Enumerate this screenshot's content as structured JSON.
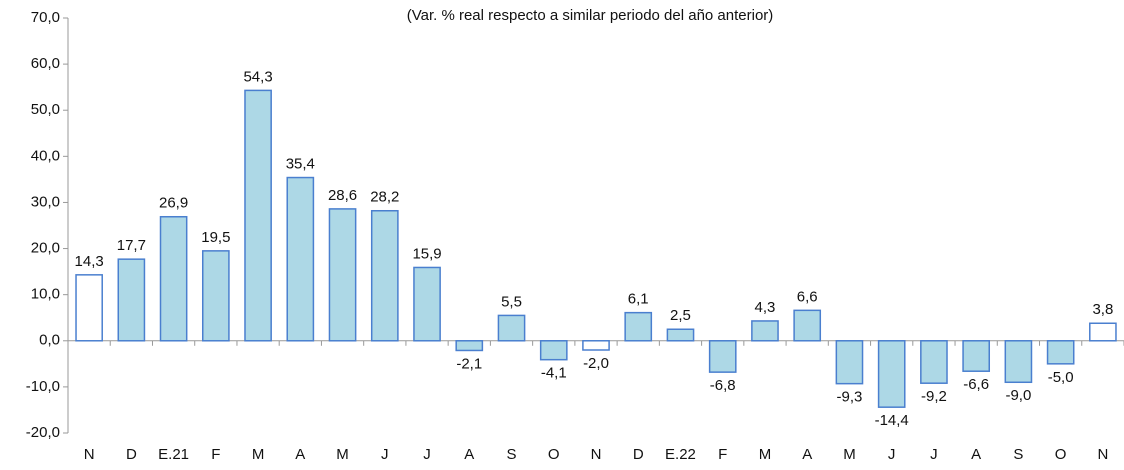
{
  "chart_data": {
    "type": "bar",
    "title": "(Var. % real respecto a similar periodo del año anterior)",
    "categories": [
      "N",
      "D",
      "E.21",
      "F",
      "M",
      "A",
      "M",
      "J",
      "J",
      "A",
      "S",
      "O",
      "N",
      "D",
      "E.22",
      "F",
      "M",
      "A",
      "M",
      "J",
      "J",
      "A",
      "S",
      "O",
      "N"
    ],
    "values": [
      14.3,
      17.7,
      26.9,
      19.5,
      54.3,
      35.4,
      28.6,
      28.2,
      15.9,
      -2.1,
      5.5,
      -4.1,
      -2.0,
      6.1,
      2.5,
      -6.8,
      4.3,
      6.6,
      -9.3,
      -14.4,
      -9.2,
      -6.6,
      -9.0,
      -5.0,
      3.8
    ],
    "value_labels": [
      "14,3",
      "17,7",
      "26,9",
      "19,5",
      "54,3",
      "35,4",
      "28,6",
      "28,2",
      "15,9",
      "-2,1",
      "5,5",
      "-4,1",
      "-2,0",
      "6,1",
      "2,5",
      "-6,8",
      "4,3",
      "6,6",
      "-9,3",
      "-14,4",
      "-9,2",
      "-6,6",
      "-9,0",
      "-5,0",
      "3,8"
    ],
    "colors": [
      "#ffffff",
      "#add8e6",
      "#add8e6",
      "#add8e6",
      "#add8e6",
      "#add8e6",
      "#add8e6",
      "#add8e6",
      "#add8e6",
      "#add8e6",
      "#add8e6",
      "#add8e6",
      "#ffffff",
      "#add8e6",
      "#add8e6",
      "#add8e6",
      "#add8e6",
      "#add8e6",
      "#add8e6",
      "#add8e6",
      "#add8e6",
      "#add8e6",
      "#add8e6",
      "#add8e6",
      "#ffffff"
    ],
    "border_color": "#4a7fcf",
    "ylim": [
      -20,
      70
    ],
    "yticks": [
      {
        "value": -20,
        "label": "-20,0"
      },
      {
        "value": -10,
        "label": "-10,0"
      },
      {
        "value": 0,
        "label": "0,0"
      },
      {
        "value": 10,
        "label": "10,0"
      },
      {
        "value": 20,
        "label": "20,0"
      },
      {
        "value": 30,
        "label": "30,0"
      },
      {
        "value": 40,
        "label": "40,0"
      },
      {
        "value": 50,
        "label": "50,0"
      },
      {
        "value": 60,
        "label": "60,0"
      },
      {
        "value": 70,
        "label": "70,0"
      }
    ],
    "grid": false
  }
}
